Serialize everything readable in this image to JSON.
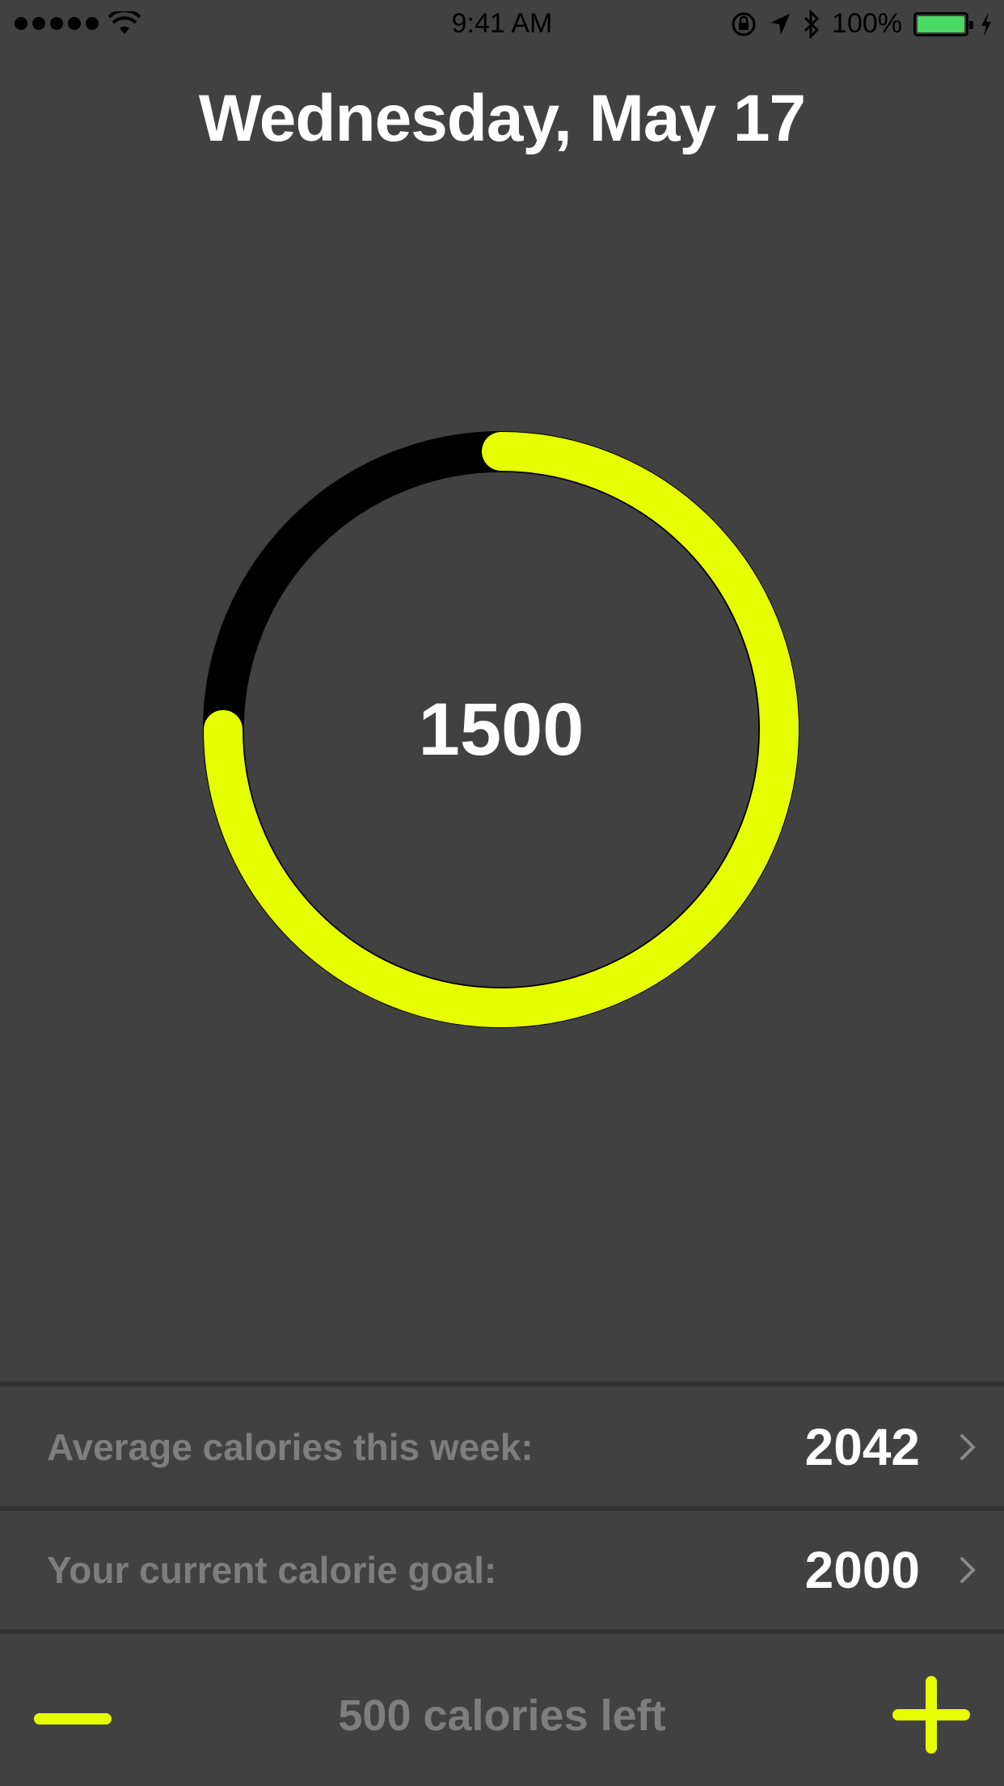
{
  "status_bar": {
    "signal_dots": 5,
    "time": "9:41 AM",
    "battery": "100%"
  },
  "header": {
    "date": "Wednesday, May 17"
  },
  "ring": {
    "value": "1500",
    "progress_fraction": 0.75,
    "track_color": "#000000",
    "progress_color": "#E6FF00"
  },
  "stats": {
    "average": {
      "label": "Average calories this week:",
      "value": "2042"
    },
    "goal": {
      "label": "Your current calorie goal:",
      "value": "2000"
    }
  },
  "footer": {
    "remaining_text": "500 calories left",
    "minus_icon": "minus-icon",
    "plus_icon": "plus-icon"
  },
  "colors": {
    "background": "#414141",
    "accent": "#E6FF00",
    "muted_text": "#7E7E7E"
  }
}
